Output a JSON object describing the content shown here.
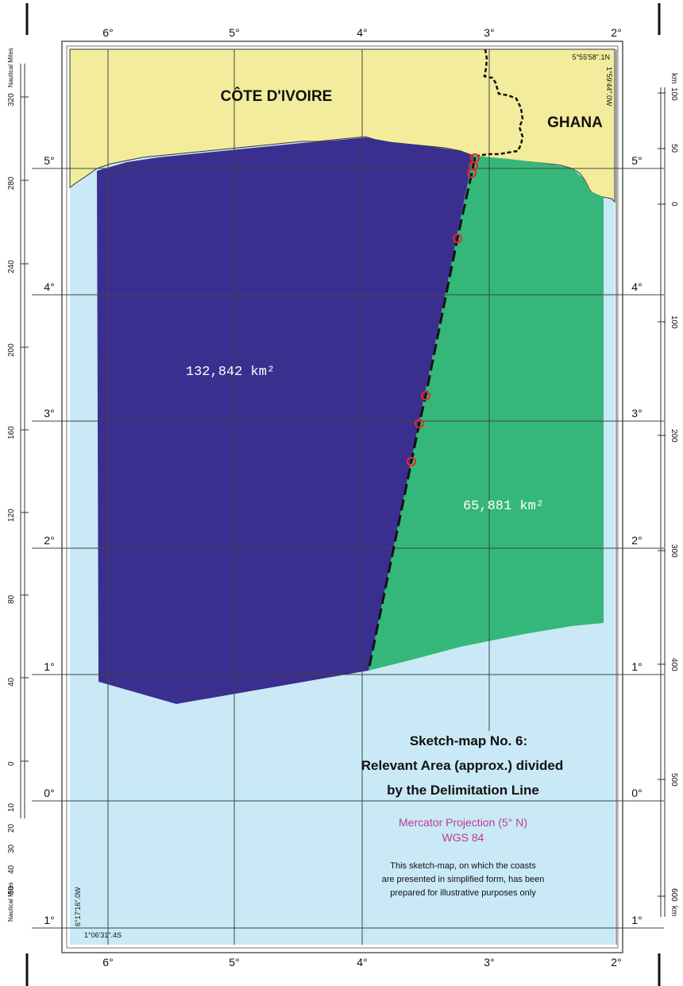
{
  "country_labels": {
    "west": "CÔTE D'IVOIRE",
    "east": "GHANA"
  },
  "area_labels": {
    "west_area": "132,842 km²",
    "east_area": "65,881 km²"
  },
  "corner_coords": {
    "top_right_lat": "5°55'58\".1N",
    "top_right_lon": "1°59'44\".0W",
    "bottom_left_lon": "6°17'16\".0W",
    "bottom_left_lat": "1°06'31\".4S"
  },
  "longitude_labels": [
    "6°",
    "5°",
    "4°",
    "3°",
    "2°"
  ],
  "latitude_labels": [
    "5°",
    "4°",
    "3°",
    "2°",
    "1°",
    "0°",
    "1°"
  ],
  "nautical_scale": {
    "title": "Nautical Miles",
    "ticks": [
      "320",
      "280",
      "240",
      "200",
      "160",
      "120",
      "80",
      "40",
      "0",
      "10",
      "20",
      "30",
      "40",
      "50"
    ]
  },
  "km_scale": {
    "unit": "km",
    "ticks": [
      "100",
      "50",
      "0",
      "100",
      "200",
      "300",
      "400",
      "500",
      "600"
    ]
  },
  "legend": {
    "title_line1": "Sketch-map No. 6:",
    "title_line2": "Relevant Area (approx.) divided",
    "title_line3": "by the Delimitation Line",
    "projection": "Mercator Projection (5° N)",
    "datum": "WGS 84",
    "note_line1": "This sketch-map, on which the coasts",
    "note_line2": "are presented in simplified form, has been",
    "note_line3": "prepared for illustrative purposes only"
  },
  "colors": {
    "land": "#f2ec9c",
    "sea": "#c9e9f6",
    "west_area": "#3a2f8f",
    "east_area": "#35b77a",
    "turning_point": "#e8262c",
    "legend_magenta": "#c0399a"
  }
}
